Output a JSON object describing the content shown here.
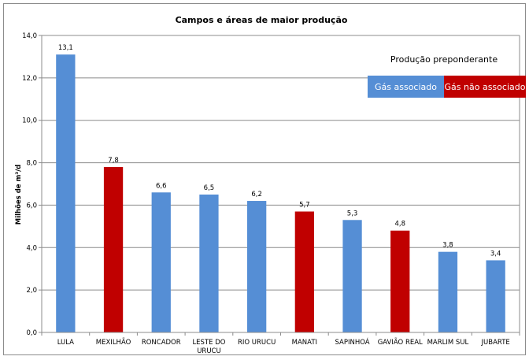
{
  "chart_data": {
    "type": "bar",
    "title": "Campos e áreas de maior produção",
    "ylabel": "Milhões de m³/d",
    "xlabel": "",
    "ylim": [
      0,
      14
    ],
    "yticks": [
      "0,0",
      "2,0",
      "4,0",
      "6,0",
      "8,0",
      "10,0",
      "12,0",
      "14,0"
    ],
    "grid": true,
    "categories": [
      "LULA",
      "MEXILHÃO",
      "RONCADOR",
      "LESTE DO URUCU",
      "RIO URUCU",
      "MANATI",
      "SAPINHOÁ",
      "GAVIÃO REAL",
      "MARLIM SUL",
      "JUBARTE"
    ],
    "values": [
      13.1,
      7.8,
      6.6,
      6.5,
      6.2,
      5.7,
      5.3,
      4.8,
      3.8,
      3.4
    ],
    "data_labels": [
      "13,1",
      "7,8",
      "6,6",
      "6,5",
      "6,2",
      "5,7",
      "5,3",
      "4,8",
      "3,8",
      "3,4"
    ],
    "production_type": [
      "assoc",
      "non_assoc",
      "assoc",
      "assoc",
      "assoc",
      "non_assoc",
      "assoc",
      "non_assoc",
      "assoc",
      "assoc"
    ],
    "colors": {
      "assoc": "#558ed5",
      "non_assoc": "#c00000"
    },
    "legend": {
      "title": "Produção preponderante",
      "placement": "top-right",
      "items": [
        {
          "key": "assoc",
          "label": "Gás associado",
          "color": "#558ed5"
        },
        {
          "key": "non_assoc",
          "label": "Gás não associado",
          "color": "#c00000"
        }
      ]
    }
  }
}
